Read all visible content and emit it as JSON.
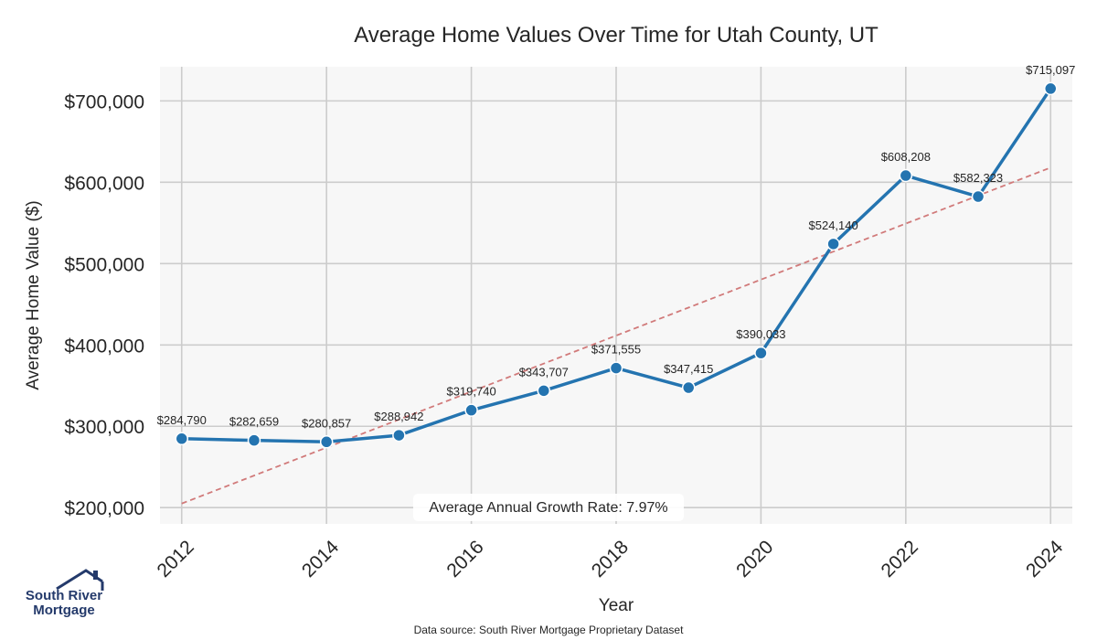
{
  "chart_data": {
    "type": "line",
    "title": "Average Home Values Over Time for Utah County, UT",
    "xlabel": "Year",
    "ylabel": "Average Home Value ($)",
    "x": [
      2012,
      2013,
      2014,
      2015,
      2016,
      2017,
      2018,
      2019,
      2020,
      2021,
      2022,
      2023,
      2024
    ],
    "x_ticks": [
      "2012",
      "2014",
      "2016",
      "2018",
      "2020",
      "2022",
      "2024"
    ],
    "y_ticks": [
      "$200,000",
      "$300,000",
      "$400,000",
      "$500,000",
      "$600,000",
      "$700,000"
    ],
    "y_tick_values": [
      200000,
      300000,
      400000,
      500000,
      600000,
      700000
    ],
    "xlim": [
      2011.7,
      2024.3
    ],
    "ylim": [
      180000,
      742000
    ],
    "grid": true,
    "series": [
      {
        "values": [
          284790,
          282659,
          280857,
          288942,
          319740,
          343707,
          371555,
          347415,
          390033,
          524140,
          608208,
          582323,
          715097
        ],
        "labels": [
          "$284,790",
          "$282,659",
          "$280,857",
          "$288,942",
          "$319,740",
          "$343,707",
          "$371,555",
          "$347,415",
          "$390,033",
          "$524,140",
          "$608,208",
          "$582,323",
          "$715,097"
        ],
        "color": "#2474b0"
      }
    ],
    "trendline": {
      "x": [
        2012,
        2024
      ],
      "y": [
        205000,
        618000
      ],
      "color": "#d17a7a",
      "style": "dashed"
    },
    "annotation": "Average Annual Growth Rate: 7.97%",
    "footer": "Data source: South River Mortgage Proprietary Dataset"
  },
  "logo": {
    "line1": "South River",
    "line2": "Mortgage"
  },
  "colors": {
    "plot_bg": "#f7f7f7",
    "grid": "#cccccc",
    "text": "#262626",
    "brand": "#243a6b"
  }
}
